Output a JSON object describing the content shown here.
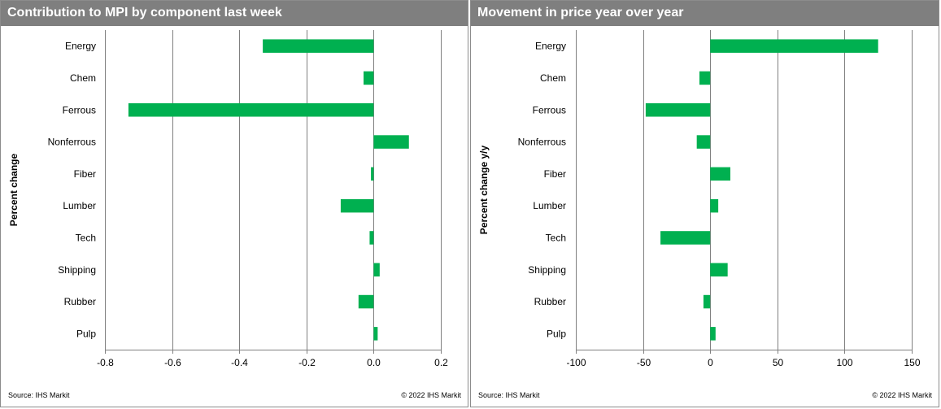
{
  "panels": [
    {
      "title": "Contribution to MPI by component last week",
      "source": "Source:  IHS Markit",
      "copyright": "© 2022  IHS Markit"
    },
    {
      "title": "Movement in price year over year",
      "source": "Source:  IHS Markit",
      "copyright": "© 2022  IHS Markit"
    }
  ],
  "colors": {
    "bar": "#00b050",
    "grid": "#808080",
    "header": "#7f7f7f"
  },
  "chart_data": [
    {
      "type": "bar",
      "orientation": "horizontal",
      "title": "Contribution to MPI by component last week",
      "ylabel": "Percent change",
      "xlabel": "",
      "categories": [
        "Energy",
        "Chem",
        "Ferrous",
        "Nonferrous",
        "Fiber",
        "Lumber",
        "Tech",
        "Shipping",
        "Rubber",
        "Pulp"
      ],
      "values": [
        -0.33,
        -0.03,
        -0.73,
        0.105,
        -0.008,
        -0.098,
        -0.012,
        0.018,
        -0.045,
        0.012
      ],
      "xlim": [
        -0.8,
        0.2
      ],
      "xticks": [
        -0.8,
        -0.6,
        -0.4,
        -0.2,
        0.0,
        0.2
      ],
      "xtick_labels": [
        "-0.8",
        "-0.6",
        "-0.4",
        "-0.2",
        "0.0",
        "0.2"
      ],
      "grid": true
    },
    {
      "type": "bar",
      "orientation": "horizontal",
      "title": "Movement in price year over year",
      "ylabel": "Percent change y/y",
      "xlabel": "",
      "categories": [
        "Energy",
        "Chem",
        "Ferrous",
        "Nonferrous",
        "Fiber",
        "Lumber",
        "Tech",
        "Shipping",
        "Rubber",
        "Pulp"
      ],
      "values": [
        125,
        -8,
        -48,
        -10,
        15,
        6,
        -37,
        13,
        -5,
        4
      ],
      "xlim": [
        -100,
        150
      ],
      "xticks": [
        -100,
        -50,
        0,
        50,
        100,
        150
      ],
      "xtick_labels": [
        "-100",
        "-50",
        "0",
        "50",
        "100",
        "150"
      ],
      "grid": true
    }
  ]
}
